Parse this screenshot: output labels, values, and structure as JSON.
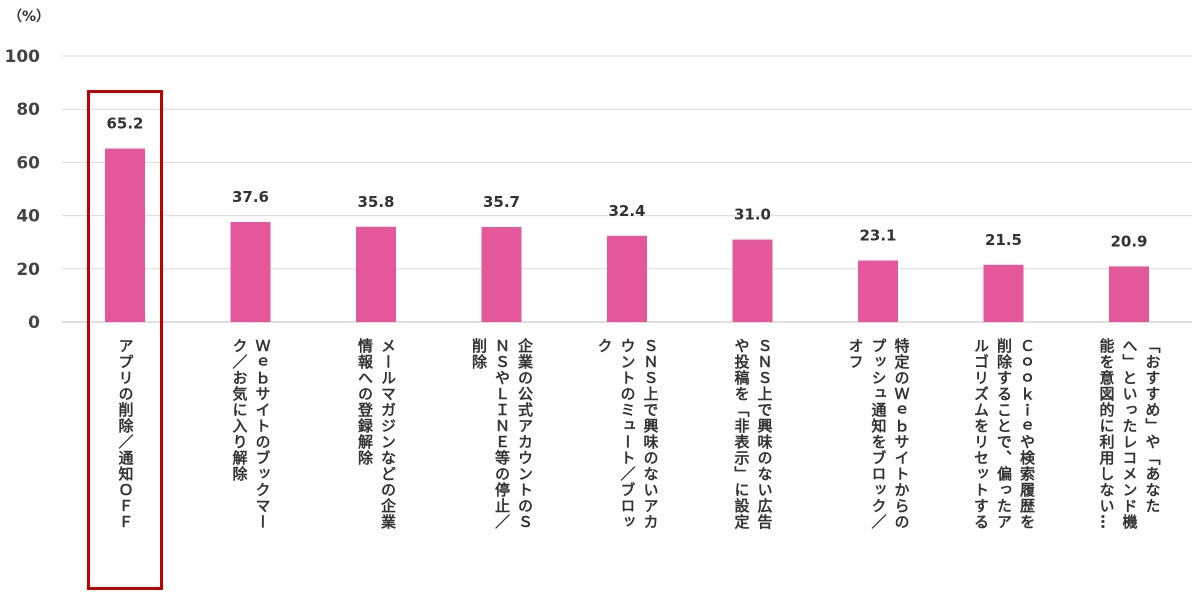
{
  "chart_data": {
    "type": "bar",
    "unit_label": "（%）",
    "ylim": [
      0,
      100
    ],
    "yticks": [
      0,
      20,
      40,
      60,
      80,
      100
    ],
    "grid": true,
    "bar_color": "#e4579a",
    "highlight_color": "#c00000",
    "highlight_index": 0,
    "categories": [
      "アプリの削除／通知ＯＦＦ",
      "Ｗｅｂサイトのブックマー\nク／お気に入り解除",
      "メールマガジンなどの企業\n情報への登録解除",
      "企業の公式アカウントのＳ\nＮＳやＬＩＮＥ等の停止／\n削除",
      "ＳＮＳ上で興味のないアカ\nウントのミュート／ブロッ\nク",
      "ＳＮＳ上で興味のない広告\nや投稿を「非表示」に設定",
      "特定のＷｅｂサイトからの\nプッシュ通知をブロック／\nオフ",
      "Ｃｏｏｋｉｅや検索履歴を\n削除することで、偏ったア\nルゴリズムをリセットする",
      "「おすすめ」や「あなた\nへ」といったレコメンド機\n能を意図的に利用しない…"
    ],
    "values": [
      65.2,
      37.6,
      35.8,
      35.7,
      32.4,
      31.0,
      23.1,
      21.5,
      20.9
    ],
    "value_labels": [
      "65.2",
      "37.6",
      "35.8",
      "35.7",
      "32.4",
      "31.0",
      "23.1",
      "21.5",
      "20.9"
    ]
  }
}
